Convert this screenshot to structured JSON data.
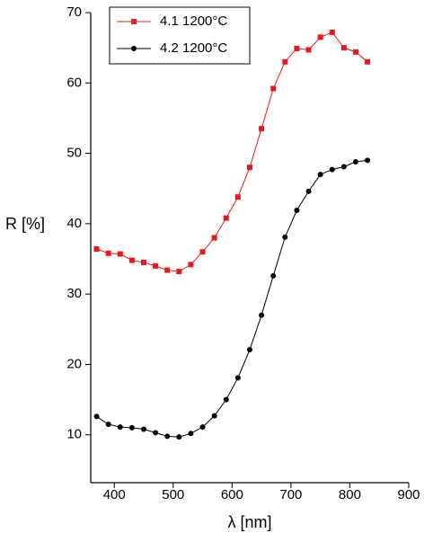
{
  "chart_data": {
    "type": "line",
    "xlabel": "λ [nm]",
    "ylabel": "R [%]",
    "xlim": [
      360,
      900
    ],
    "xticks": [
      400,
      500,
      600,
      700,
      800,
      900
    ],
    "ylim": [
      3.2,
      70
    ],
    "yticks": [
      10,
      20,
      30,
      40,
      50,
      60,
      70
    ],
    "legend": "upper left",
    "x": [
      370,
      390,
      410,
      430,
      450,
      470,
      490,
      510,
      530,
      550,
      570,
      590,
      610,
      630,
      650,
      670,
      690,
      710,
      730,
      750,
      770,
      790,
      810,
      830
    ],
    "series": [
      {
        "name": "4.1 1200°C",
        "color": "#e8191a",
        "marker": "square",
        "values": [
          36.4,
          35.8,
          35.7,
          34.8,
          34.5,
          34.0,
          33.4,
          33.2,
          34.2,
          36.0,
          38.0,
          40.8,
          43.8,
          48.0,
          53.5,
          59.2,
          63.0,
          64.9,
          64.7,
          66.5,
          67.2,
          65.0,
          64.4,
          63.0
        ]
      },
      {
        "name": "4.2 1200°C",
        "color": "#000000",
        "marker": "circle",
        "values": [
          12.6,
          11.5,
          11.1,
          11.0,
          10.8,
          10.3,
          9.8,
          9.7,
          10.2,
          11.1,
          12.7,
          15.0,
          18.1,
          22.1,
          27.0,
          32.6,
          38.1,
          41.9,
          44.6,
          47.0,
          47.7,
          48.1,
          48.8,
          49.0
        ]
      }
    ]
  }
}
